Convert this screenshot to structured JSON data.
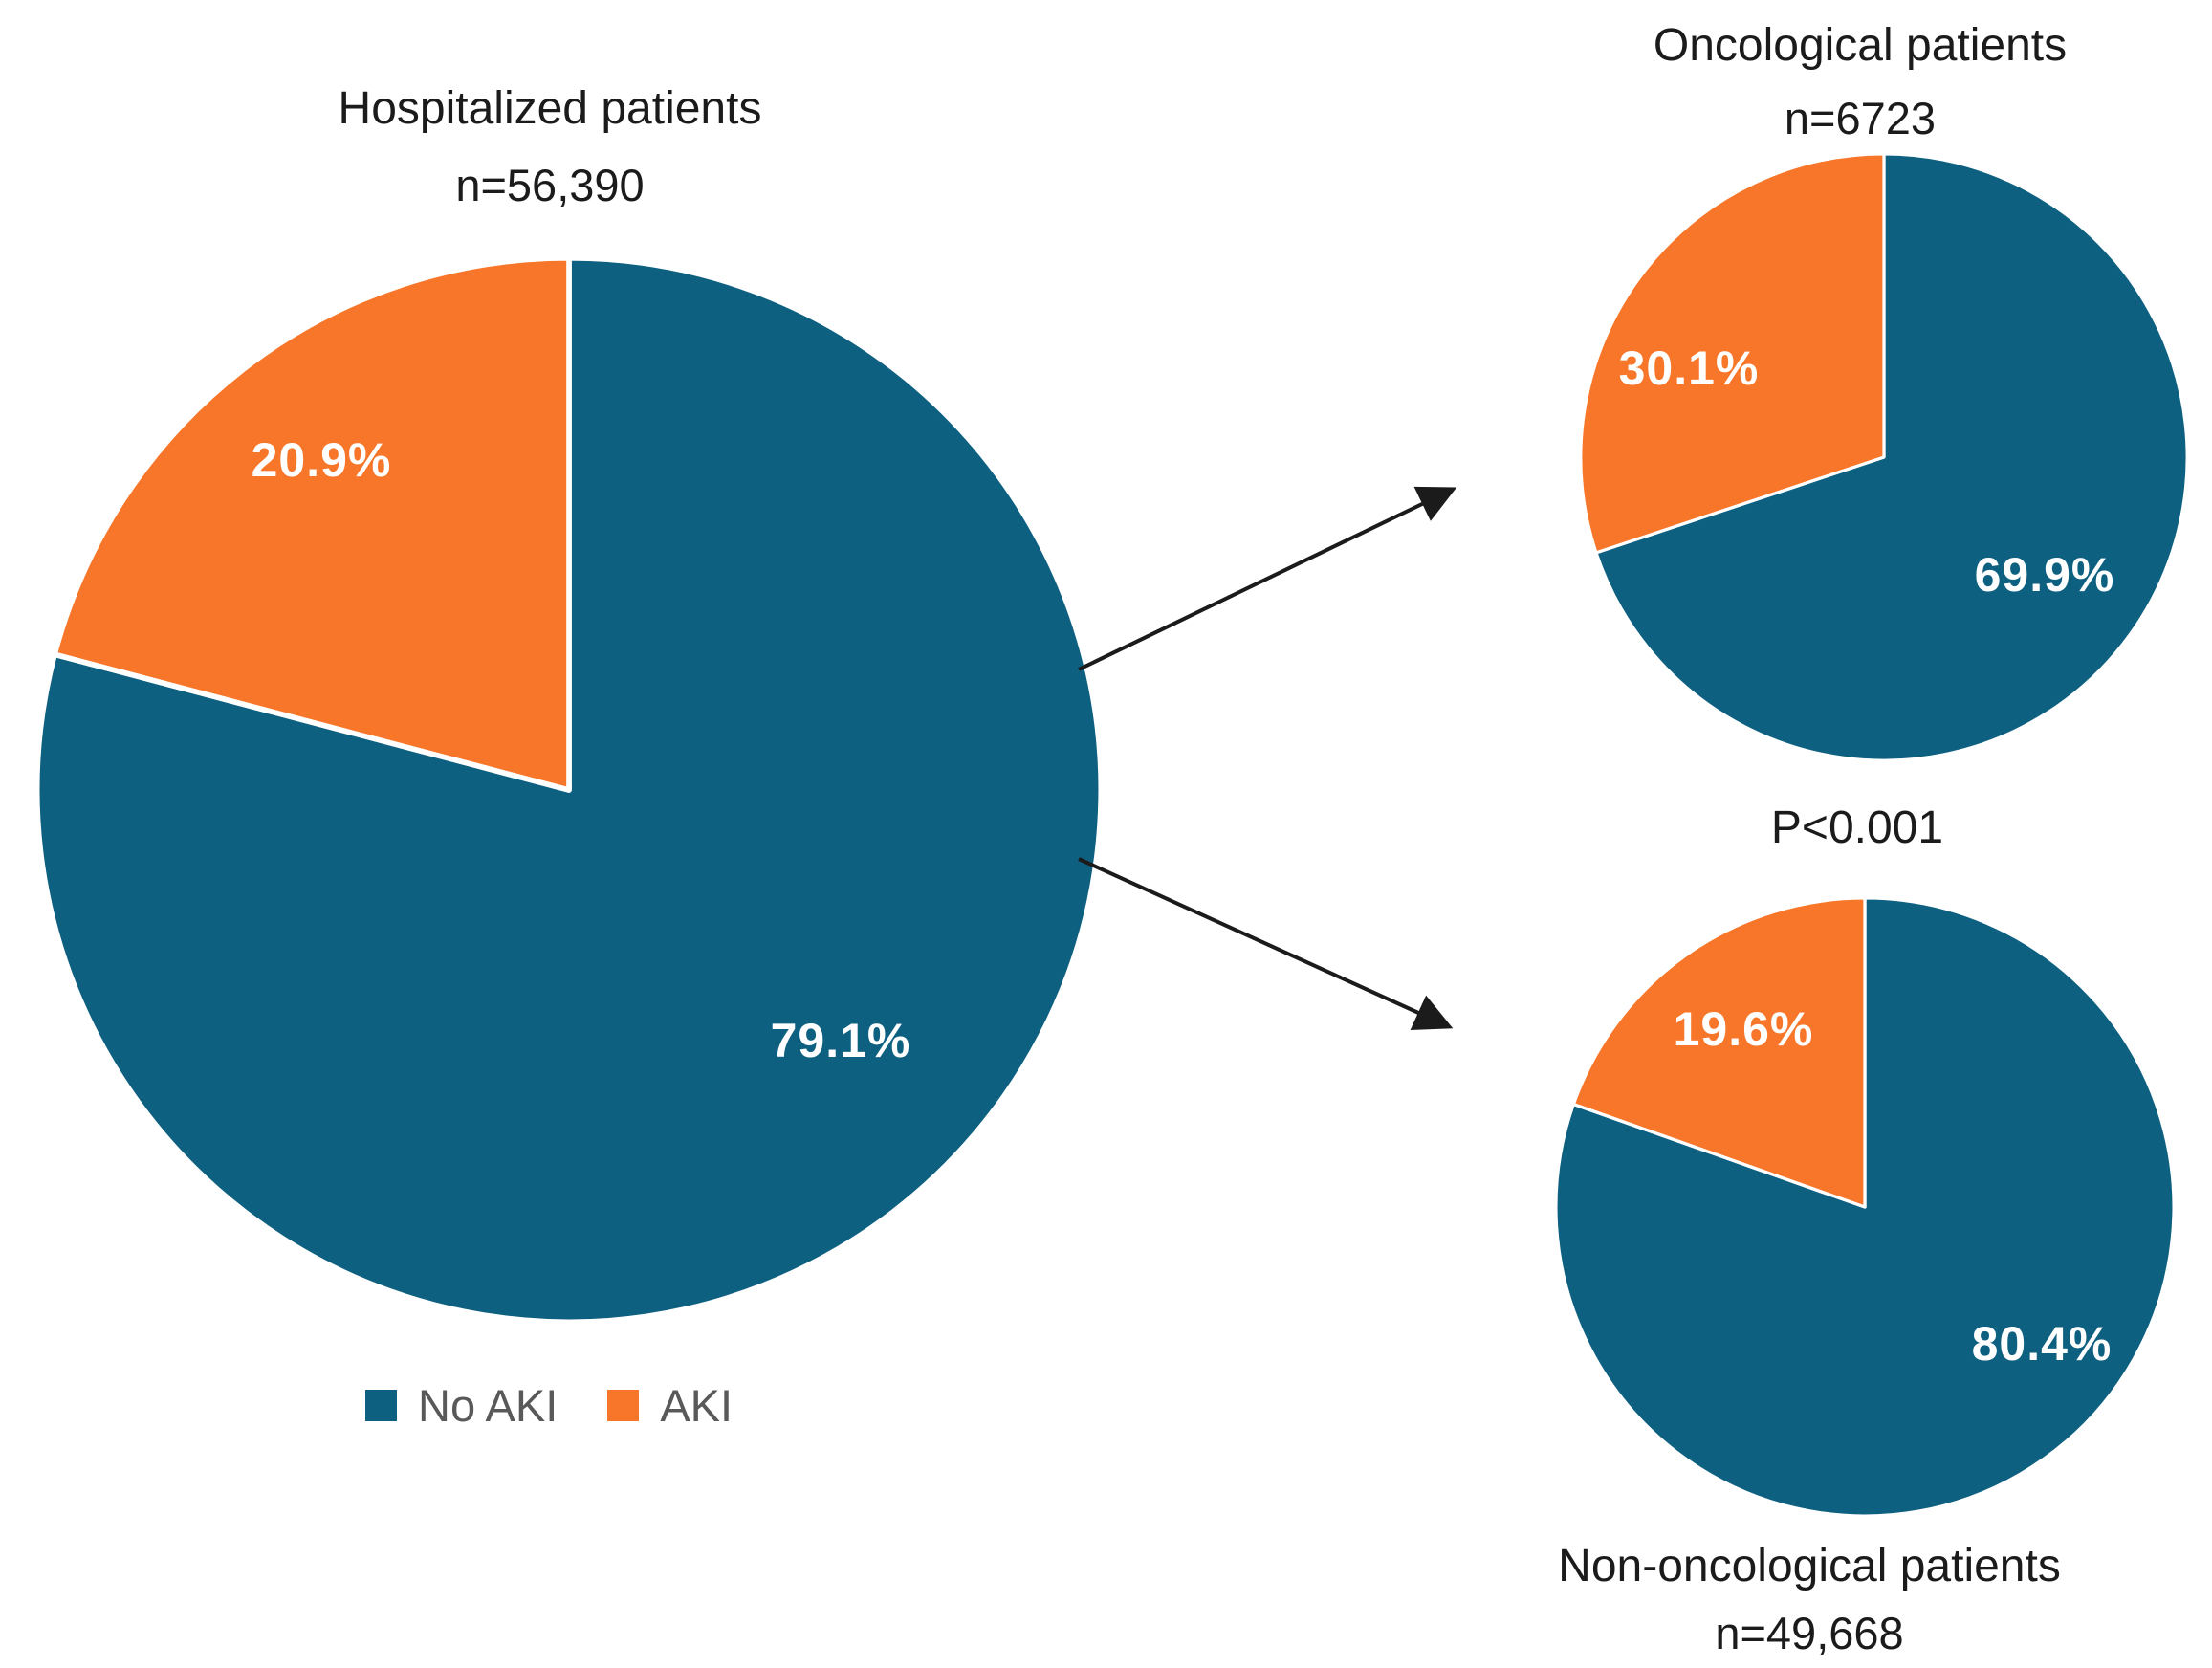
{
  "figure": {
    "p_value": "P<0.001"
  },
  "chart_data": [
    {
      "type": "pie",
      "title": "Hospitalized patients",
      "subtitle": "n=56,390",
      "n": 56390,
      "categories": [
        "No AKI",
        "AKI"
      ],
      "values": [
        79.1,
        20.9
      ],
      "slices": [
        {
          "label": "No AKI",
          "value": 79.1,
          "display": "79.1%",
          "color": "#0E6080"
        },
        {
          "label": "AKI",
          "value": 20.9,
          "display": "20.9%",
          "color": "#F87629"
        }
      ],
      "start_angle_deg": 0,
      "direction": "clockwise",
      "labels_inside": true
    },
    {
      "type": "pie",
      "title": "Oncological patients",
      "subtitle": "n=6723",
      "n": 6723,
      "categories": [
        "No AKI",
        "AKI"
      ],
      "values": [
        69.9,
        30.1
      ],
      "slices": [
        {
          "label": "No AKI",
          "value": 69.9,
          "display": "69.9%",
          "color": "#0E6080"
        },
        {
          "label": "AKI",
          "value": 30.1,
          "display": "30.1%",
          "color": "#F87629"
        }
      ],
      "start_angle_deg": 0,
      "direction": "clockwise",
      "labels_inside": true
    },
    {
      "type": "pie",
      "title": "Non-oncological patients",
      "subtitle": "n=49,668",
      "n": 49668,
      "categories": [
        "No AKI",
        "AKI"
      ],
      "values": [
        80.4,
        19.6
      ],
      "slices": [
        {
          "label": "No AKI",
          "value": 80.4,
          "display": "80.4%",
          "color": "#0E6080"
        },
        {
          "label": "AKI",
          "value": 19.6,
          "display": "19.6%",
          "color": "#F87629"
        }
      ],
      "start_angle_deg": 0,
      "direction": "clockwise",
      "labels_inside": true
    }
  ],
  "legend": {
    "position": "below-main-pie",
    "items": [
      {
        "label": "No AKI",
        "color": "#0E6080"
      },
      {
        "label": "AKI",
        "color": "#F87629"
      }
    ]
  },
  "colors": {
    "no_aki": "#0E6080",
    "aki": "#F87629",
    "title_text": "#1B1B1B",
    "legend_text": "#595959",
    "slice_label_text": "#FFFFFF",
    "arrow": "#1B1B1B",
    "background": "#FFFFFF"
  }
}
